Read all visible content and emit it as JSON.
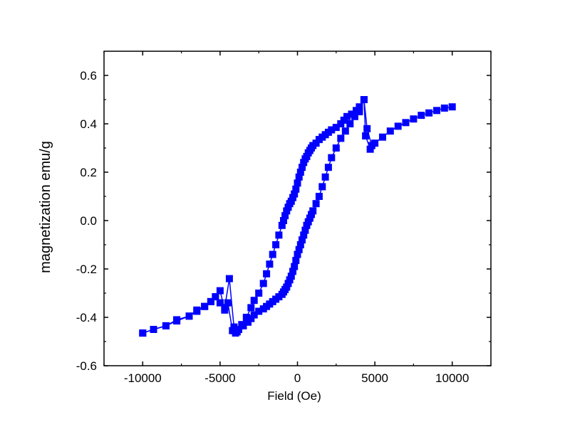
{
  "chart_data": {
    "type": "line",
    "title": "",
    "xlabel": "Field (Oe)",
    "ylabel": "magnetization emu/g",
    "xlim": [
      -12500,
      12500
    ],
    "ylim": [
      -0.6,
      0.7
    ],
    "xticks": [
      -10000,
      -5000,
      0,
      5000,
      10000
    ],
    "xtick_labels": [
      "-10000",
      "-5000",
      "0",
      "5000",
      "10000"
    ],
    "yticks": [
      -0.6,
      -0.4,
      -0.2,
      0.0,
      0.2,
      0.4,
      0.6
    ],
    "ytick_labels": [
      "-0.6",
      "-0.4",
      "-0.2",
      "0.0",
      "0.2",
      "0.4",
      "0.6"
    ],
    "grid": false,
    "legend": "none",
    "marker": "square",
    "color": "#0000ff",
    "series": [
      {
        "x": [
          10000,
          9500,
          9000,
          8500,
          8000,
          7500,
          7000,
          6500,
          6000,
          5500,
          5000,
          4700,
          4400,
          4300,
          4000,
          3800,
          3500,
          3200,
          3000,
          2800,
          2500,
          2200,
          2000,
          1800,
          1600,
          1400,
          1200,
          1000,
          900,
          800,
          700,
          600,
          500,
          400,
          300,
          200,
          100,
          0,
          -100,
          -200,
          -300,
          -400,
          -500,
          -600,
          -700,
          -800,
          -900,
          -1000,
          -1200,
          -1400,
          -1600,
          -1800,
          -2000,
          -2200,
          -2500,
          -2800,
          -3000,
          -3300,
          -3600,
          -3900,
          -4100,
          -4400,
          -4700,
          -5000,
          -5300,
          -5600,
          -6000,
          -6500,
          -7000,
          -7800,
          -8500,
          -9300,
          -10000
        ],
        "y": [
          0.47,
          0.465,
          0.455,
          0.445,
          0.435,
          0.42,
          0.405,
          0.39,
          0.37,
          0.345,
          0.32,
          0.295,
          0.35,
          0.5,
          0.47,
          0.455,
          0.44,
          0.43,
          0.415,
          0.4,
          0.385,
          0.375,
          0.365,
          0.355,
          0.345,
          0.335,
          0.32,
          0.31,
          0.3,
          0.29,
          0.28,
          0.265,
          0.255,
          0.24,
          0.22,
          0.2,
          0.18,
          0.155,
          0.13,
          0.11,
          0.095,
          0.08,
          0.07,
          0.055,
          0.04,
          0.02,
          0.0,
          -0.02,
          -0.06,
          -0.1,
          -0.14,
          -0.18,
          -0.22,
          -0.26,
          -0.3,
          -0.33,
          -0.36,
          -0.4,
          -0.43,
          -0.46,
          -0.44,
          -0.24,
          -0.36,
          -0.34,
          -0.315,
          -0.335,
          -0.355,
          -0.37,
          -0.395,
          -0.41,
          -0.435,
          -0.45,
          -0.465
        ]
      },
      {
        "x": [
          -10000,
          -9300,
          -8500,
          -7800,
          -7000,
          -6500,
          -6000,
          -5600,
          -5300,
          -5000,
          -4700,
          -4500,
          -4200,
          -4000,
          -3800,
          -3500,
          -3200,
          -3000,
          -2800,
          -2500,
          -2200,
          -2000,
          -1800,
          -1600,
          -1400,
          -1200,
          -1000,
          -900,
          -800,
          -700,
          -600,
          -500,
          -400,
          -300,
          -200,
          -100,
          0,
          100,
          200,
          300,
          400,
          500,
          600,
          700,
          800,
          900,
          1000,
          1200,
          1400,
          1600,
          1800,
          2000,
          2200,
          2500,
          2800,
          3100,
          3400,
          3700,
          4000,
          4300,
          4500,
          4800
        ],
        "y": [
          -0.465,
          -0.45,
          -0.435,
          -0.415,
          -0.395,
          -0.375,
          -0.355,
          -0.335,
          -0.315,
          -0.29,
          -0.37,
          -0.34,
          -0.455,
          -0.465,
          -0.45,
          -0.435,
          -0.42,
          -0.405,
          -0.39,
          -0.375,
          -0.365,
          -0.355,
          -0.345,
          -0.335,
          -0.325,
          -0.315,
          -0.305,
          -0.295,
          -0.285,
          -0.275,
          -0.26,
          -0.245,
          -0.23,
          -0.21,
          -0.19,
          -0.165,
          -0.14,
          -0.12,
          -0.1,
          -0.08,
          -0.06,
          -0.04,
          -0.02,
          -0.005,
          0.01,
          0.025,
          0.04,
          0.07,
          0.1,
          0.14,
          0.18,
          0.22,
          0.26,
          0.3,
          0.34,
          0.37,
          0.4,
          0.43,
          0.45,
          0.5,
          0.38,
          0.31
        ]
      }
    ]
  }
}
